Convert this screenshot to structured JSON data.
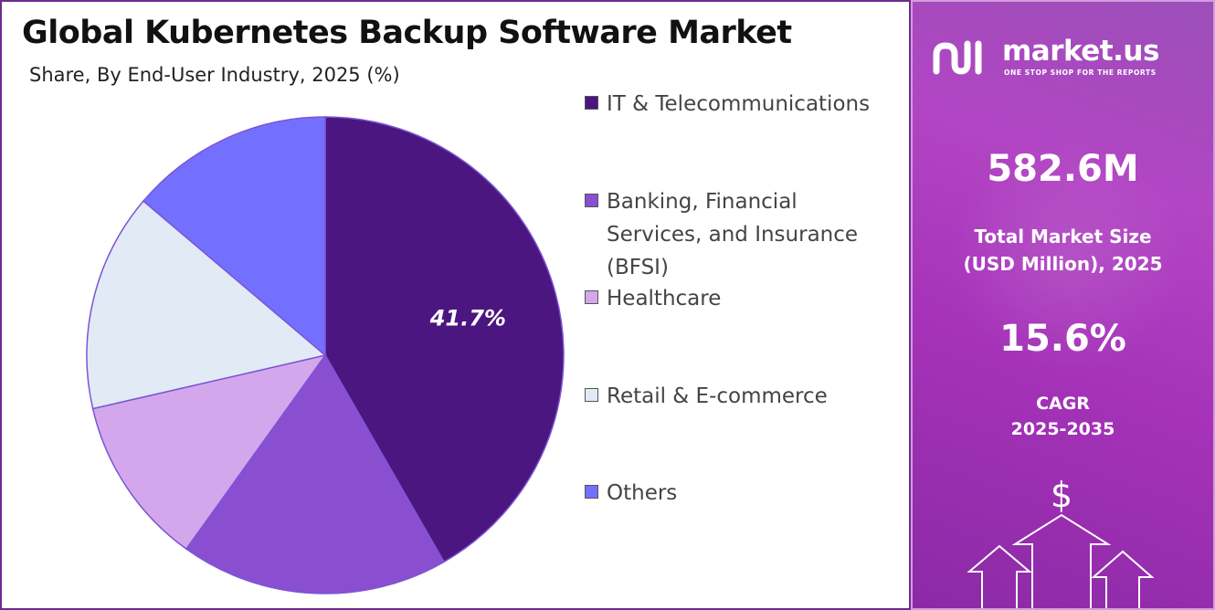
{
  "title": "Global Kubernetes Backup Software Market",
  "subtitle": "Share, By End-User Industry, 2025 (%)",
  "chart_data": {
    "type": "pie",
    "title": "Global Kubernetes Backup Software Market",
    "subtitle": "Share, By End-User Industry, 2025 (%)",
    "start_angle_deg": 0,
    "direction": "clockwise",
    "legend_position": "right",
    "slices": [
      {
        "label": "IT & Telecommunications",
        "value": 41.7,
        "color": "#4b1680",
        "data_label": "41.7%"
      },
      {
        "label": "Banking, Financial Services, and Insurance (BFSI)",
        "value": 18.2,
        "color": "#8a4fd1",
        "data_label": ""
      },
      {
        "label": "Healthcare",
        "value": 11.5,
        "color": "#d4a7ec",
        "data_label": ""
      },
      {
        "label": "Retail & E-commerce",
        "value": 14.8,
        "color": "#e2eaf6",
        "data_label": ""
      },
      {
        "label": "Others",
        "value": 13.8,
        "color": "#7470ff",
        "data_label": ""
      }
    ]
  },
  "legend": [
    {
      "label": "IT & Telecommunications",
      "color": "#4b1680"
    },
    {
      "label": "Banking, Financial Services, and Insurance (BFSI)",
      "color": "#8a4fd1"
    },
    {
      "label": "Healthcare",
      "color": "#d4a7ec"
    },
    {
      "label": "Retail & E-commerce",
      "color": "#e2eaf6"
    },
    {
      "label": "Others",
      "color": "#7470ff"
    }
  ],
  "sidebar": {
    "logo_text": "market.us",
    "logo_tagline": "ONE STOP SHOP FOR THE REPORTS",
    "market_size_value": "582.6M",
    "market_size_label_line1": "Total Market Size",
    "market_size_label_line2": "(USD Million), 2025",
    "cagr_value": "15.6%",
    "cagr_label_line1": "CAGR",
    "cagr_label_line2": "2025-2035",
    "dollar_symbol": "$",
    "colors": {
      "panel": "#a532b8",
      "border": "#6a2c91"
    }
  }
}
